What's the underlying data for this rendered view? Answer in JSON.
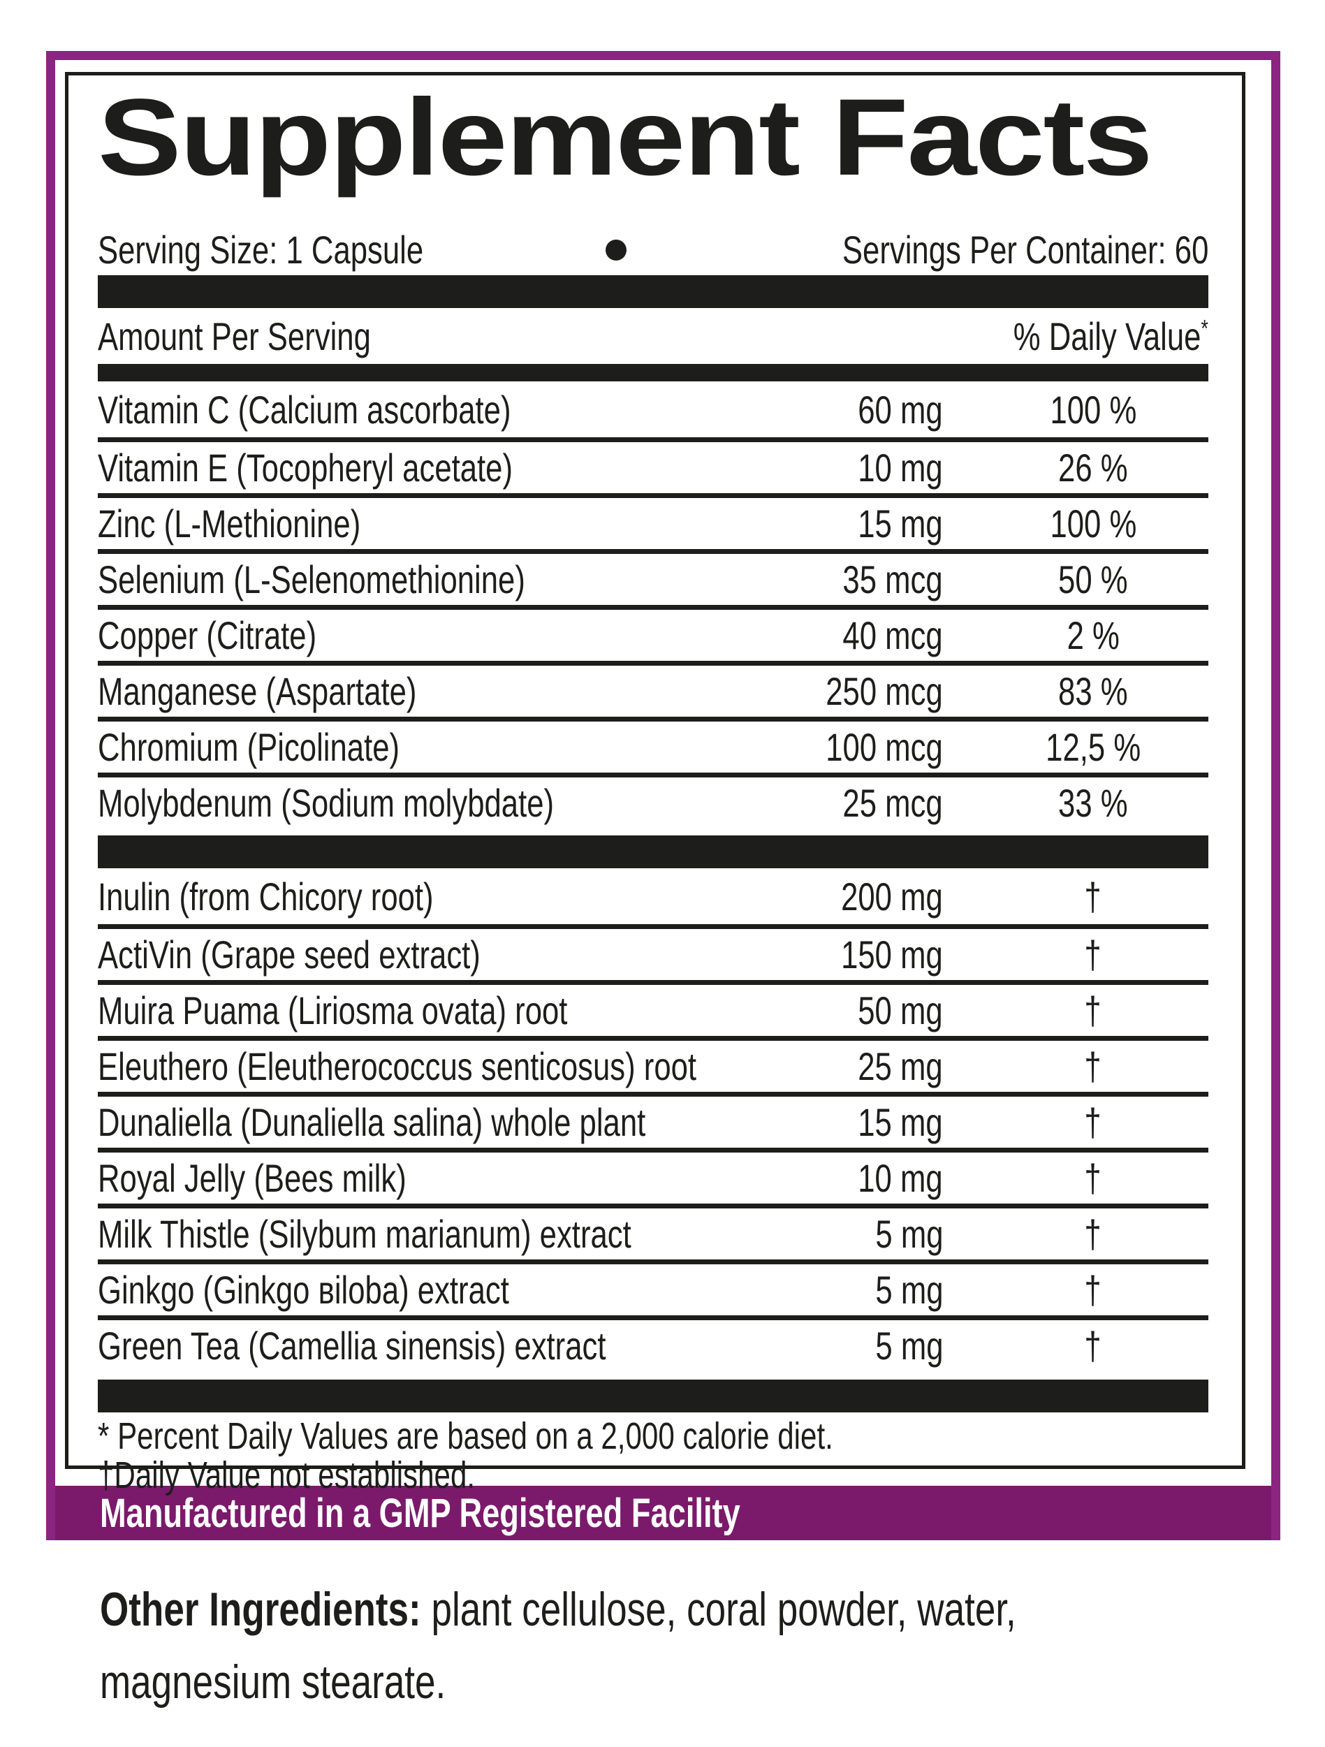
{
  "colors": {
    "ink": "#1d1d1b",
    "frame_purple": "#8c2481",
    "banner_purple": "#7b1a6b"
  },
  "label": {
    "title": "Supplement Facts",
    "serving_size": "Serving Size: 1 Capsule",
    "servings_per_container": "Servings Per Container: 60",
    "header": {
      "amount": "Amount Per Serving",
      "daily_value": "% Daily Value",
      "daily_value_sup": "*"
    },
    "minerals": [
      {
        "name": "Vitamin C (Calcium ascorbate)",
        "amount": "60 mg",
        "dv": "100 %"
      },
      {
        "name": "Vitamin E (Tocopheryl acetate)",
        "amount": "10 mg",
        "dv": "26 %"
      },
      {
        "name": "Zinc (L-Methionine)",
        "amount": "15 mg",
        "dv": "100 %"
      },
      {
        "name": "Selenium (L-Selenomethionine)",
        "amount": "35 mcg",
        "dv": "50 %"
      },
      {
        "name": "Copper (Citrate)",
        "amount": "40 mcg",
        "dv": "2 %"
      },
      {
        "name": "Manganese (Aspartate)",
        "amount": "250 mcg",
        "dv": "83 %"
      },
      {
        "name": "Chromium (Picolinate)",
        "amount": "100 mcg",
        "dv": "12,5 %"
      },
      {
        "name": "Molybdenum (Sodium molybdate)",
        "amount": "25 mcg",
        "dv": "33 %"
      }
    ],
    "botanicals": [
      {
        "name": "Inulin (from Chicory root)",
        "amount": "200 mg",
        "dv": "†"
      },
      {
        "name": "ActiVin (Grape seed extract)",
        "amount": "150 mg",
        "dv": "†"
      },
      {
        "name": "Muira Puama (Liriosma ovata) root",
        "amount": "50 mg",
        "dv": "†"
      },
      {
        "name": "Eleuthero (Eleutherococcus senticosus) root",
        "amount": "25 mg",
        "dv": "†"
      },
      {
        "name": "Dunaliella (Dunaliella salina) whole plant",
        "amount": "15 mg",
        "dv": "†"
      },
      {
        "name": "Royal Jelly (Bees milk)",
        "amount": "10 mg",
        "dv": "†"
      },
      {
        "name": "Milk Thistle (Silybum marianum) extract",
        "amount": "5 mg",
        "dv": "†"
      },
      {
        "name": "Ginkgo (Ginkgo вiloba) extract",
        "amount": "5 mg",
        "dv": "†"
      },
      {
        "name": "Green Tea (Camellia sinensis) extract",
        "amount": "5 mg",
        "dv": "†"
      }
    ],
    "footnotes": [
      "* Percent Daily Values are based on a 2,000 calorie diet.",
      "†Daily Value not established."
    ],
    "banner": "Manufactured in a GMP Registered Facility"
  },
  "other_ingredients": {
    "label": "Other Ingredients:",
    "lines": [
      "plant cellulose, coral powder, water,",
      "magnesium stearate."
    ]
  }
}
